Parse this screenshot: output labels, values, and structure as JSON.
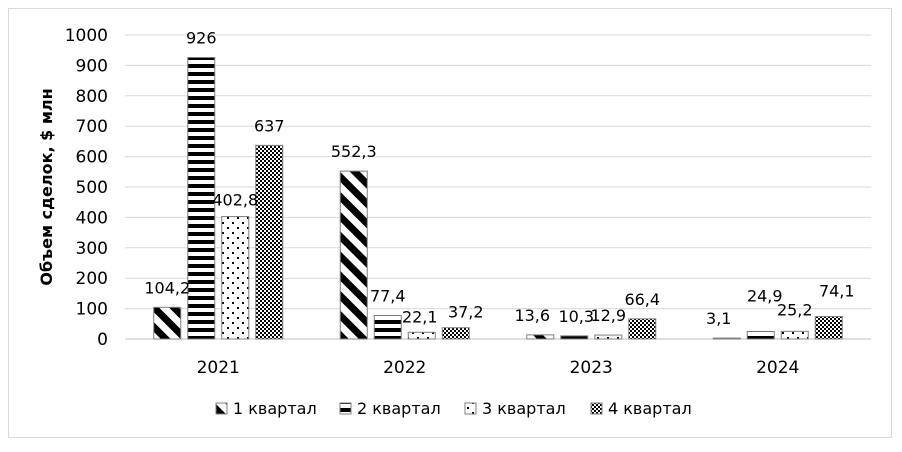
{
  "chart_data": {
    "type": "bar",
    "title": "",
    "xlabel": "",
    "ylabel": "Объем сделок, $ млн",
    "ylim": [
      0,
      1000
    ],
    "yticks": [
      0,
      100,
      200,
      300,
      400,
      500,
      600,
      700,
      800,
      900,
      1000
    ],
    "categories": [
      "2021",
      "2022",
      "2023",
      "2024"
    ],
    "legend_position": "bottom",
    "grid": true,
    "series": [
      {
        "name": "1 квартал",
        "pattern": "diagonal",
        "values": [
          104.2,
          552.3,
          13.6,
          3.1
        ],
        "labels": [
          "104,2",
          "552,3",
          "13,6",
          "3,1"
        ]
      },
      {
        "name": "2 квартал",
        "pattern": "horizontal",
        "values": [
          926,
          77.4,
          10.3,
          24.9
        ],
        "labels": [
          "926",
          "77,4",
          "10,3",
          "24,9"
        ]
      },
      {
        "name": "3 квартал",
        "pattern": "sparse-dots",
        "values": [
          402.8,
          22.1,
          12.9,
          25.2
        ],
        "labels": [
          "402,8",
          "22,1",
          "12,9",
          "25,2"
        ]
      },
      {
        "name": "4 квартал",
        "pattern": "dense-dots",
        "values": [
          637,
          37.2,
          66.4,
          74.1
        ],
        "labels": [
          "637",
          "37,2",
          "66,4",
          "74,1"
        ]
      }
    ]
  }
}
